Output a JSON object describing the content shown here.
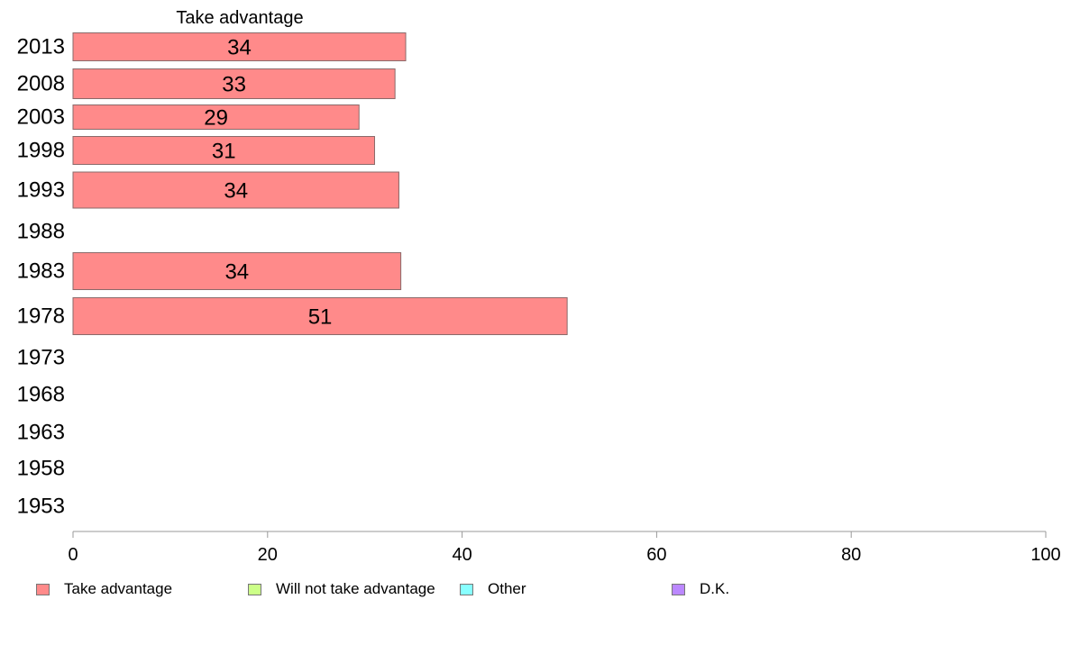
{
  "chart_data": {
    "type": "bar",
    "orientation": "horizontal",
    "title": "Take advantage",
    "categories": [
      "2013",
      "2008",
      "2003",
      "1998",
      "1993",
      "1988",
      "1983",
      "1978",
      "1973",
      "1968",
      "1963",
      "1958",
      "1953"
    ],
    "series": [
      {
        "name": "Take advantage",
        "color": "#ff8a8a",
        "values": [
          34.2,
          33.1,
          29.4,
          31.0,
          33.5,
          null,
          33.7,
          50.8,
          null,
          null,
          null,
          null,
          null
        ],
        "labels": [
          "34",
          "33",
          "29",
          "31",
          "34",
          "",
          "34",
          "51",
          "",
          "",
          "",
          "",
          ""
        ]
      }
    ],
    "xlim": [
      0,
      100
    ],
    "xticks": [
      "0",
      "20",
      "40",
      "60",
      "80",
      "100"
    ],
    "grid": false,
    "legend": {
      "placement": "bottom",
      "items": [
        {
          "label": "Take advantage",
          "color": "#ff8a8a"
        },
        {
          "label": "Will not take advantage",
          "color": "#ccff88"
        },
        {
          "label": "Other",
          "color": "#88ffff"
        },
        {
          "label": "D.K.",
          "color": "#bb88ff"
        }
      ]
    }
  }
}
